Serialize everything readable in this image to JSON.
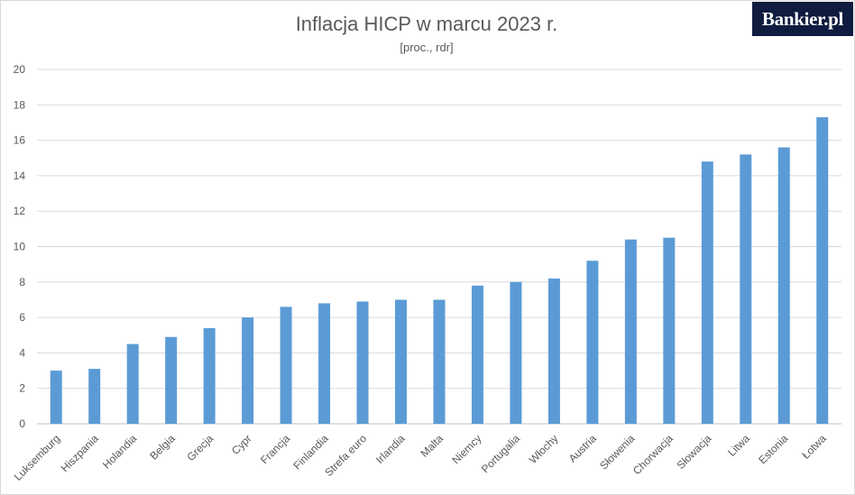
{
  "brand": {
    "logo_text": "Bankier.pl",
    "bg_color": "#0f1c3f",
    "accent_color": "#e3262b"
  },
  "chart_data": {
    "type": "bar",
    "title": "Inflacja HICP w marcu 2023 r.",
    "subtitle": "[proc., rdr]",
    "xlabel": "",
    "ylabel": "",
    "ylim": [
      0,
      20
    ],
    "yticks": [
      0,
      2,
      4,
      6,
      8,
      10,
      12,
      14,
      16,
      18,
      20
    ],
    "grid": true,
    "legend": "none",
    "bar_color": "#5b9bd5",
    "categories": [
      "Luksemburg",
      "Hiszpania",
      "Holandia",
      "Belgia",
      "Grecja",
      "Cypr",
      "Francja",
      "Finlandia",
      "Strefa euro",
      "Irlandia",
      "Malta",
      "Niemcy",
      "Portugalia",
      "Włochy",
      "Austria",
      "Słowenia",
      "Chorwacja",
      "Słowacja",
      "Litwa",
      "Estonia",
      "Łotwa"
    ],
    "values": [
      3.0,
      3.1,
      4.5,
      4.9,
      5.4,
      6.0,
      6.6,
      6.8,
      6.9,
      7.0,
      7.0,
      7.8,
      8.0,
      8.2,
      9.2,
      10.4,
      10.5,
      14.8,
      15.2,
      15.6,
      17.3
    ]
  }
}
